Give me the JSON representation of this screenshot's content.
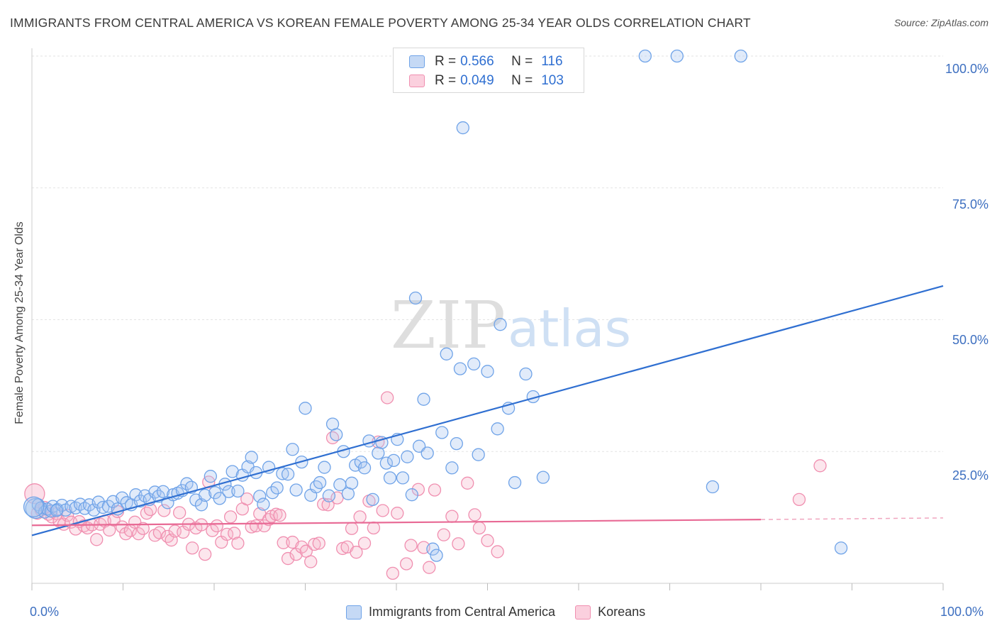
{
  "title": "IMMIGRANTS FROM CENTRAL AMERICA VS KOREAN FEMALE POVERTY AMONG 25-34 YEAR OLDS CORRELATION CHART",
  "source": "Source: ZipAtlas.com",
  "watermark": {
    "zip": "ZIP",
    "atlas": "atlas"
  },
  "legend_top": [
    {
      "r_label": "R =",
      "r_value": "0.566",
      "n_label": "N =",
      "n_value": "116",
      "color": "#6fa3e8"
    },
    {
      "r_label": "R =",
      "r_value": "0.049",
      "n_label": "N =",
      "n_value": "103",
      "color": "#f08fb0"
    }
  ],
  "chart_data": {
    "type": "scatter",
    "title": "IMMIGRANTS FROM CENTRAL AMERICA VS KOREAN FEMALE POVERTY AMONG 25-34 YEAR OLDS CORRELATION CHART",
    "xlabel": "",
    "ylabel": "Female Poverty Among 25-34 Year Olds",
    "xlim": [
      0,
      100
    ],
    "ylim": [
      0,
      100
    ],
    "x_tick_labels": [
      "0.0%",
      "100.0%"
    ],
    "y_tick_labels": [
      "25.0%",
      "50.0%",
      "75.0%",
      "100.0%"
    ],
    "y_ticks": [
      25,
      50,
      75,
      100
    ],
    "grid": true,
    "legend_placement": "bottom",
    "series": [
      {
        "name": "Immigrants from Central America",
        "color": "#6fa3e8",
        "trend": {
          "x": [
            0,
            100
          ],
          "y": [
            9.1,
            56.4
          ]
        },
        "points": [
          [
            0.4,
            14.2
          ],
          [
            0.7,
            14.9
          ],
          [
            1.0,
            14.3
          ],
          [
            1.4,
            13.5
          ],
          [
            1.7,
            14.1
          ],
          [
            2.1,
            13.7
          ],
          [
            2.3,
            14.6
          ],
          [
            2.8,
            14.0
          ],
          [
            3.3,
            14.8
          ],
          [
            3.7,
            13.9
          ],
          [
            4.3,
            14.6
          ],
          [
            4.8,
            14.3
          ],
          [
            5.3,
            15.0
          ],
          [
            5.8,
            14.2
          ],
          [
            6.3,
            14.9
          ],
          [
            6.8,
            13.9
          ],
          [
            7.3,
            15.4
          ],
          [
            7.8,
            14.4
          ],
          [
            8.4,
            14.6
          ],
          [
            8.9,
            15.5
          ],
          [
            9.4,
            14.1
          ],
          [
            9.9,
            16.2
          ],
          [
            10.4,
            15.3
          ],
          [
            10.9,
            14.9
          ],
          [
            11.4,
            16.8
          ],
          [
            11.9,
            15.6
          ],
          [
            12.4,
            16.6
          ],
          [
            12.9,
            15.9
          ],
          [
            13.5,
            17.3
          ],
          [
            13.9,
            16.5
          ],
          [
            14.4,
            17.4
          ],
          [
            14.9,
            15.3
          ],
          [
            15.5,
            16.8
          ],
          [
            16.0,
            17.1
          ],
          [
            16.5,
            17.6
          ],
          [
            17.0,
            18.9
          ],
          [
            17.5,
            18.2
          ],
          [
            18.0,
            15.8
          ],
          [
            18.6,
            14.9
          ],
          [
            19.0,
            16.7
          ],
          [
            19.6,
            20.3
          ],
          [
            20.1,
            17.2
          ],
          [
            20.6,
            16.1
          ],
          [
            21.2,
            18.8
          ],
          [
            21.6,
            17.4
          ],
          [
            22.0,
            21.2
          ],
          [
            22.6,
            17.5
          ],
          [
            23.1,
            20.5
          ],
          [
            23.7,
            22.1
          ],
          [
            24.1,
            23.9
          ],
          [
            24.6,
            21.0
          ],
          [
            25.0,
            16.5
          ],
          [
            25.4,
            15.0
          ],
          [
            26.0,
            22.0
          ],
          [
            26.4,
            17.2
          ],
          [
            26.9,
            18.1
          ],
          [
            27.5,
            20.8
          ],
          [
            28.1,
            20.7
          ],
          [
            28.6,
            25.4
          ],
          [
            29.0,
            17.7
          ],
          [
            29.6,
            23.0
          ],
          [
            30.0,
            33.2
          ],
          [
            30.6,
            16.7
          ],
          [
            31.2,
            18.3
          ],
          [
            31.6,
            19.1
          ],
          [
            32.1,
            22.0
          ],
          [
            32.6,
            16.6
          ],
          [
            33.0,
            30.2
          ],
          [
            33.4,
            28.2
          ],
          [
            33.8,
            18.7
          ],
          [
            34.2,
            25.0
          ],
          [
            34.7,
            17.0
          ],
          [
            35.1,
            19.0
          ],
          [
            35.5,
            22.4
          ],
          [
            36.1,
            23.0
          ],
          [
            36.5,
            21.9
          ],
          [
            37.0,
            27.0
          ],
          [
            37.4,
            15.9
          ],
          [
            38.0,
            24.7
          ],
          [
            38.4,
            26.7
          ],
          [
            38.9,
            22.8
          ],
          [
            39.3,
            20.0
          ],
          [
            39.7,
            23.3
          ],
          [
            40.1,
            27.3
          ],
          [
            40.7,
            20.0
          ],
          [
            41.2,
            24.0
          ],
          [
            41.7,
            16.8
          ],
          [
            42.1,
            54.1
          ],
          [
            42.5,
            26.0
          ],
          [
            43.0,
            34.9
          ],
          [
            43.4,
            24.7
          ],
          [
            44.0,
            6.5
          ],
          [
            44.4,
            5.3
          ],
          [
            45.0,
            28.6
          ],
          [
            45.5,
            43.5
          ],
          [
            46.1,
            21.9
          ],
          [
            46.6,
            26.5
          ],
          [
            47.0,
            40.7
          ],
          [
            47.3,
            86.4
          ],
          [
            48.5,
            41.6
          ],
          [
            49.0,
            24.4
          ],
          [
            50.0,
            40.2
          ],
          [
            51.1,
            29.3
          ],
          [
            51.4,
            49.1
          ],
          [
            52.3,
            33.2
          ],
          [
            53.0,
            19.1
          ],
          [
            54.2,
            39.7
          ],
          [
            55.0,
            35.4
          ],
          [
            56.1,
            20.1
          ],
          [
            67.3,
            100.0
          ],
          [
            70.8,
            100.0
          ],
          [
            77.8,
            100.0
          ],
          [
            74.7,
            18.3
          ],
          [
            88.8,
            6.7
          ],
          [
            0.2,
            14.5
          ],
          [
            2.7,
            13.8
          ]
        ]
      },
      {
        "name": "Koreans",
        "color": "#f08fb0",
        "trend": {
          "x": [
            0,
            80
          ],
          "y": [
            11.0,
            12.1
          ]
        },
        "trend_dashed": {
          "x": [
            80,
            100
          ],
          "y": [
            12.1,
            12.4
          ]
        },
        "points": [
          [
            0.3,
            17.0
          ],
          [
            0.6,
            13.3
          ],
          [
            1.0,
            13.9
          ],
          [
            1.4,
            14.4
          ],
          [
            1.8,
            13.1
          ],
          [
            2.2,
            12.6
          ],
          [
            2.7,
            13.2
          ],
          [
            3.0,
            11.8
          ],
          [
            3.5,
            11.2
          ],
          [
            3.9,
            12.9
          ],
          [
            4.3,
            11.6
          ],
          [
            4.8,
            10.3
          ],
          [
            5.2,
            11.7
          ],
          [
            5.7,
            10.9
          ],
          [
            6.1,
            10.5
          ],
          [
            6.6,
            11.1
          ],
          [
            7.1,
            8.3
          ],
          [
            7.5,
            11.2
          ],
          [
            8.0,
            11.8
          ],
          [
            8.5,
            10.1
          ],
          [
            9.0,
            12.0
          ],
          [
            9.4,
            13.6
          ],
          [
            9.9,
            10.7
          ],
          [
            10.3,
            9.4
          ],
          [
            10.8,
            10.0
          ],
          [
            11.3,
            11.6
          ],
          [
            11.7,
            9.4
          ],
          [
            12.2,
            10.4
          ],
          [
            12.6,
            13.3
          ],
          [
            13.0,
            14.0
          ],
          [
            13.5,
            9.1
          ],
          [
            14.0,
            9.6
          ],
          [
            14.5,
            13.8
          ],
          [
            14.9,
            8.9
          ],
          [
            15.3,
            8.2
          ],
          [
            15.7,
            9.9
          ],
          [
            16.2,
            13.4
          ],
          [
            16.6,
            9.7
          ],
          [
            17.2,
            11.2
          ],
          [
            17.6,
            6.7
          ],
          [
            18.0,
            10.5
          ],
          [
            18.6,
            11.1
          ],
          [
            19.0,
            5.5
          ],
          [
            19.4,
            19.2
          ],
          [
            19.8,
            10.0
          ],
          [
            20.3,
            10.9
          ],
          [
            20.8,
            7.8
          ],
          [
            21.4,
            9.3
          ],
          [
            21.8,
            12.6
          ],
          [
            22.2,
            9.5
          ],
          [
            22.6,
            7.6
          ],
          [
            23.1,
            14.1
          ],
          [
            23.6,
            16.0
          ],
          [
            24.1,
            10.7
          ],
          [
            24.6,
            10.9
          ],
          [
            25.0,
            13.2
          ],
          [
            25.5,
            10.9
          ],
          [
            26.0,
            12.1
          ],
          [
            26.3,
            12.7
          ],
          [
            26.8,
            13.1
          ],
          [
            27.2,
            12.9
          ],
          [
            27.6,
            7.7
          ],
          [
            28.1,
            4.7
          ],
          [
            28.6,
            7.8
          ],
          [
            29.0,
            5.5
          ],
          [
            29.6,
            6.9
          ],
          [
            30.1,
            6.1
          ],
          [
            30.6,
            4.1
          ],
          [
            31.0,
            7.4
          ],
          [
            31.5,
            7.6
          ],
          [
            32.0,
            15.0
          ],
          [
            32.5,
            14.9
          ],
          [
            33.0,
            27.6
          ],
          [
            33.5,
            16.2
          ],
          [
            34.1,
            6.6
          ],
          [
            34.6,
            6.9
          ],
          [
            35.1,
            10.4
          ],
          [
            35.6,
            5.9
          ],
          [
            36.0,
            12.6
          ],
          [
            36.5,
            7.6
          ],
          [
            37.0,
            15.6
          ],
          [
            37.5,
            10.5
          ],
          [
            38.0,
            26.8
          ],
          [
            38.5,
            13.8
          ],
          [
            39.0,
            35.2
          ],
          [
            39.6,
            1.9
          ],
          [
            40.1,
            13.3
          ],
          [
            41.1,
            3.7
          ],
          [
            41.6,
            7.2
          ],
          [
            42.4,
            17.8
          ],
          [
            43.0,
            6.8
          ],
          [
            43.6,
            3.0
          ],
          [
            44.2,
            17.7
          ],
          [
            45.2,
            9.2
          ],
          [
            46.1,
            12.7
          ],
          [
            46.8,
            7.5
          ],
          [
            47.8,
            19.0
          ],
          [
            48.6,
            13.0
          ],
          [
            49.1,
            10.5
          ],
          [
            50.0,
            8.1
          ],
          [
            51.1,
            6.0
          ],
          [
            84.2,
            15.9
          ],
          [
            86.5,
            22.3
          ]
        ]
      }
    ]
  },
  "legend_bottom": [
    {
      "label": "Immigrants from Central America",
      "color": "#6fa3e8"
    },
    {
      "label": "Koreans",
      "color": "#f08fb0"
    }
  ],
  "axes": {
    "x_min_label": "0.0%",
    "x_max_label": "100.0%"
  }
}
